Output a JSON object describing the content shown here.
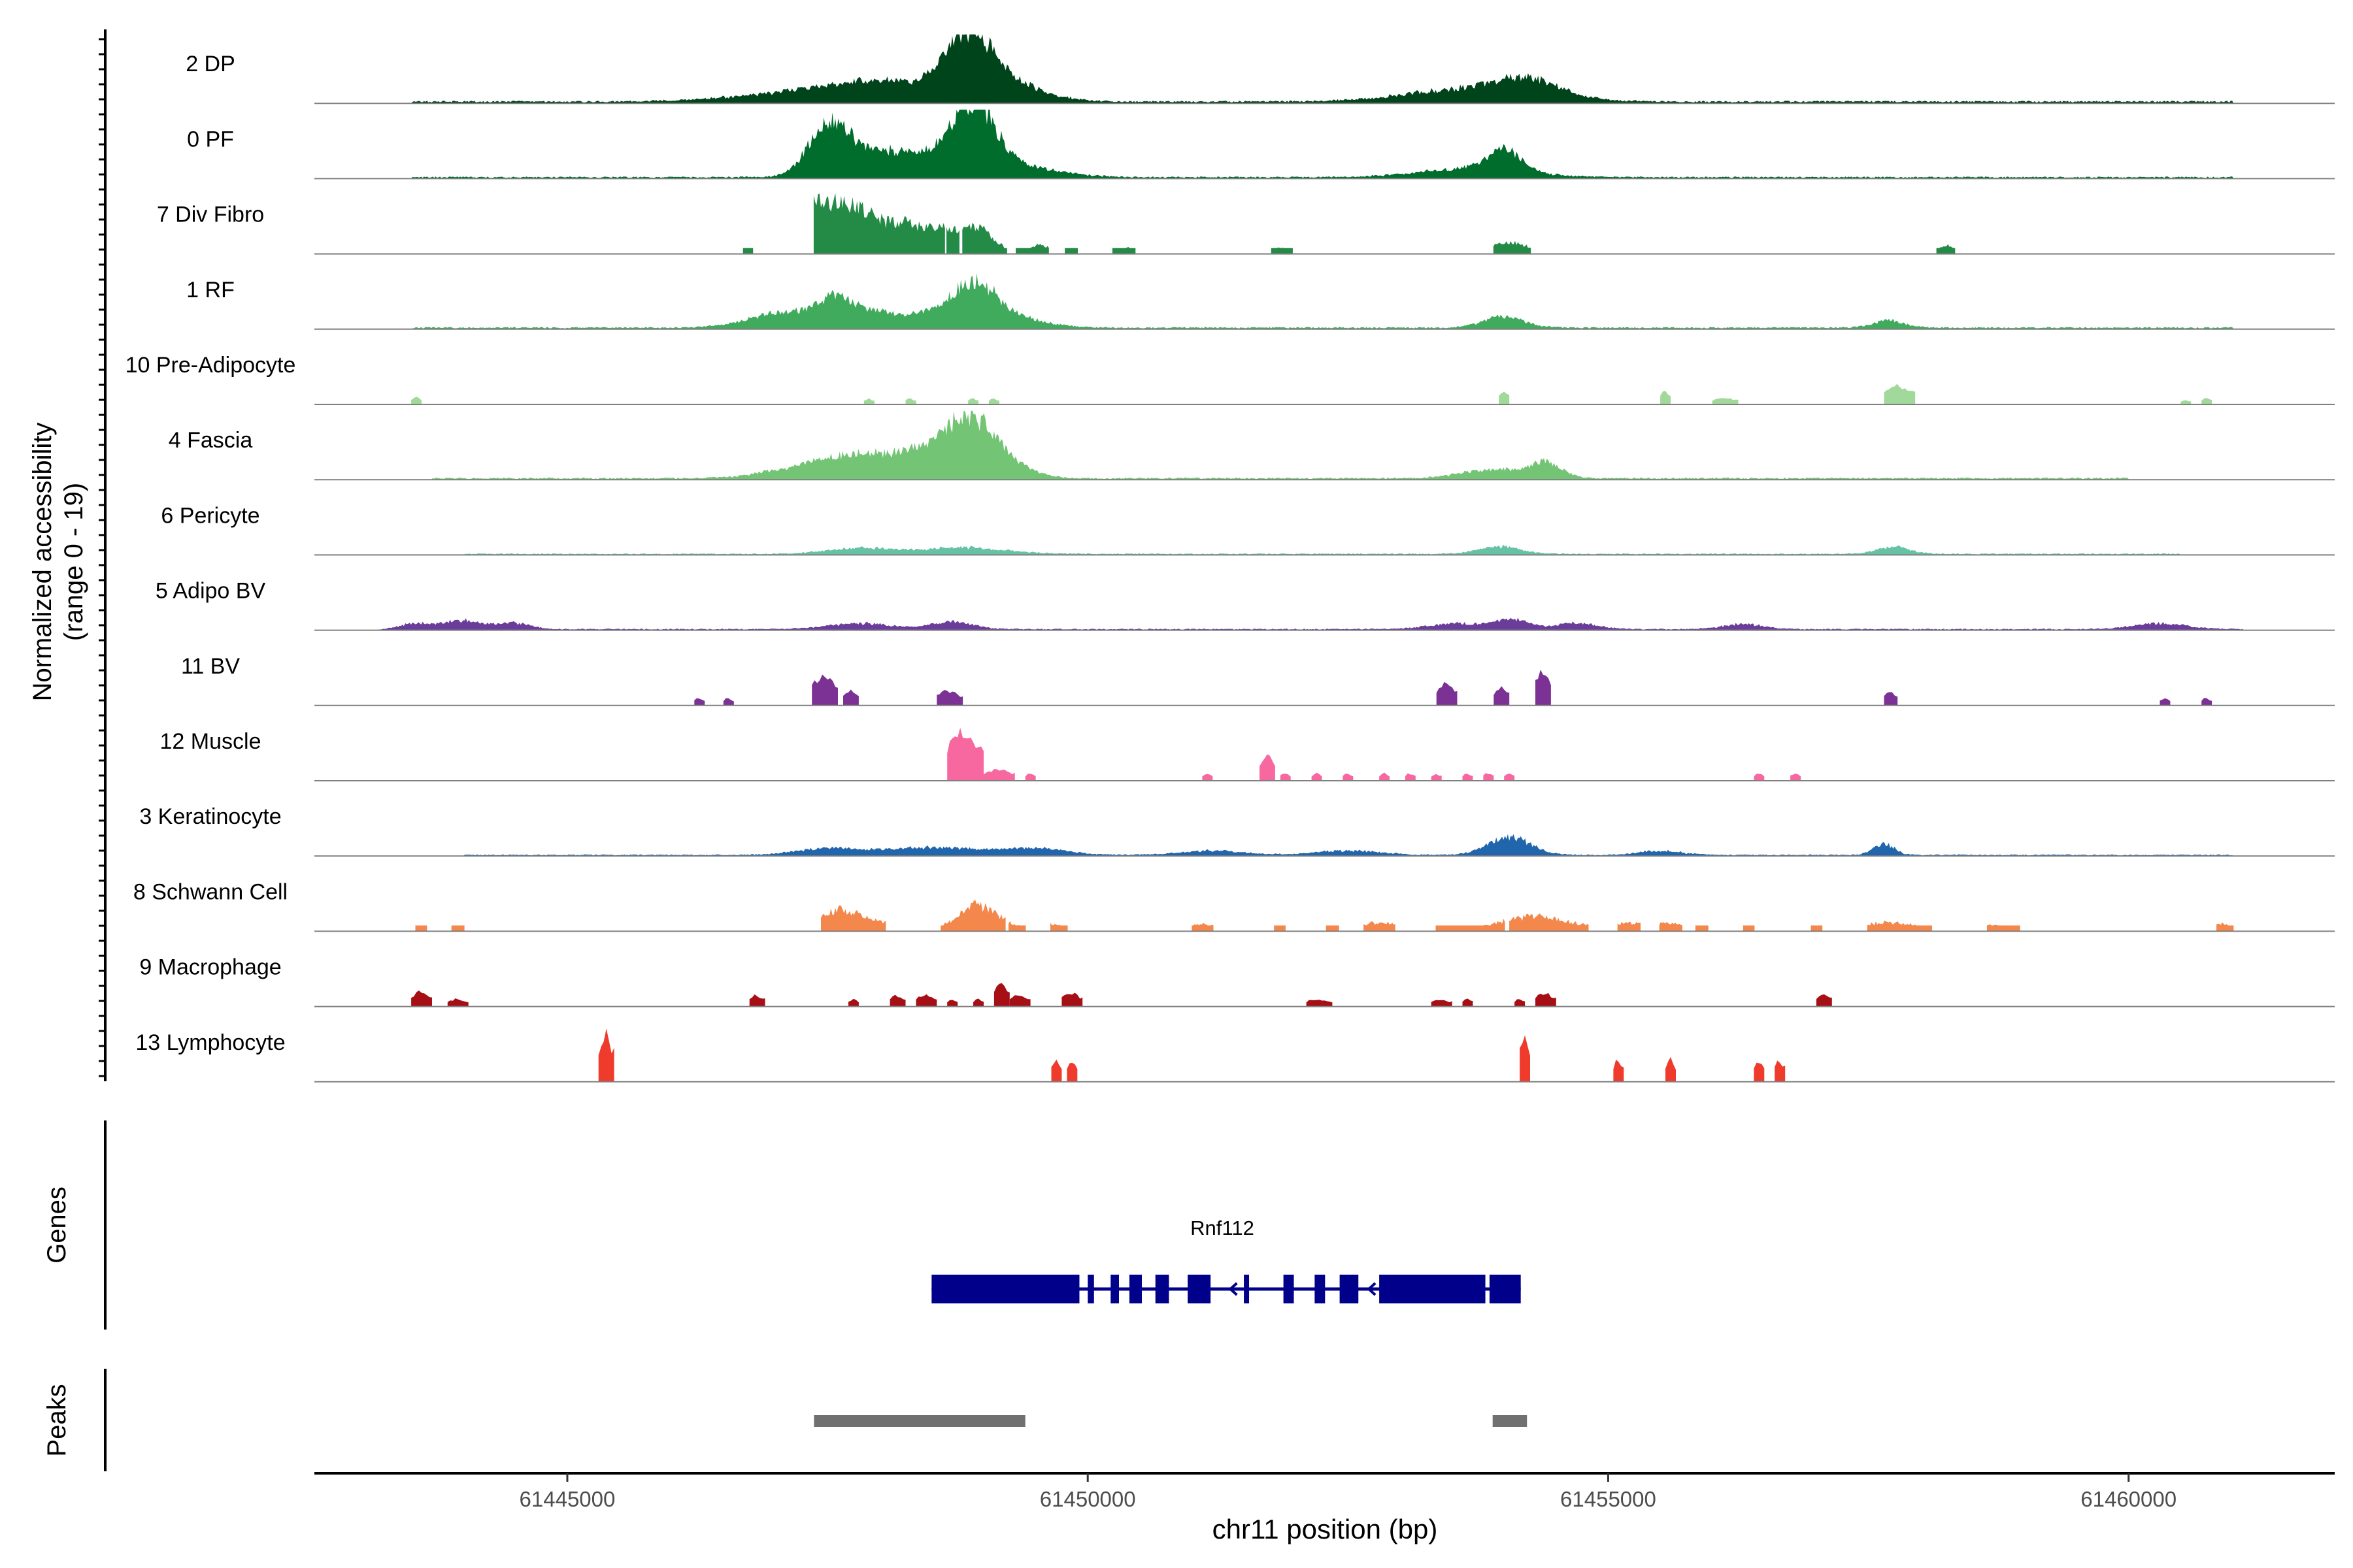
{
  "chart_data": {
    "type": "area",
    "title": "",
    "ylabel_line1": "Normalized accessibility",
    "ylabel_line2": "(range 0 - 19)",
    "genes_label": "Genes",
    "peaks_label": "Peaks",
    "xlabel": "chr11 position (bp)",
    "xlim": [
      61442570,
      61461980
    ],
    "xticks": [
      61445000,
      61450000,
      61455000,
      61460000
    ],
    "xtick_labels": [
      "61445000",
      "61450000",
      "61455000",
      "61460000"
    ],
    "ylim": [
      0,
      19
    ],
    "tracks": [
      {
        "name": "2 DP",
        "color": "#00441b",
        "peaks": [
          [
            61447400,
            1.5,
            650
          ],
          [
            61448200,
            2.0,
            500
          ],
          [
            61448850,
            7.5,
            220
          ],
          [
            61449200,
            2.5,
            350
          ],
          [
            61453700,
            1.8,
            600
          ],
          [
            61454250,
            2.0,
            300
          ]
        ],
        "noise": [
          61443500,
          61461000
        ],
        "base": 0.25
      },
      {
        "name": "0 PF",
        "color": "#006d2c",
        "peaks": [
          [
            61447500,
            6.0,
            180
          ],
          [
            61447900,
            3.0,
            350
          ],
          [
            61448500,
            2.0,
            400
          ],
          [
            61448900,
            8.5,
            200
          ],
          [
            61449300,
            1.5,
            400
          ],
          [
            61453700,
            1.2,
            500
          ],
          [
            61454000,
            3.0,
            160
          ]
        ],
        "noise": [
          61443500,
          61461000
        ],
        "base": 0.2
      },
      {
        "name": "7 Div Fibro",
        "color": "#238b45",
        "peaks": [
          [
            61447300,
            6.5,
            180
          ],
          [
            61447700,
            6.0,
            200
          ],
          [
            61448200,
            4.0,
            250
          ],
          [
            61448600,
            2.5,
            150
          ],
          [
            61448950,
            3.5,
            150
          ],
          [
            61449550,
            1.2,
            100
          ],
          [
            61450400,
            0.8,
            100
          ],
          [
            61451850,
            0.8,
            100
          ],
          [
            61454050,
            1.5,
            200
          ],
          [
            61458250,
            1.2,
            60
          ]
        ],
        "noise": [],
        "base": 0.3,
        "blocky": true,
        "segs": [
          [
            61446700,
            61446780
          ],
          [
            61447370,
            61448620
          ],
          [
            61448650,
            61448760
          ],
          [
            61448800,
            61449220
          ],
          [
            61449320,
            61449620
          ],
          [
            61449780,
            61449900
          ],
          [
            61450250,
            61450450
          ],
          [
            61451770,
            61451960
          ],
          [
            61453900,
            61454250
          ],
          [
            61458160,
            61458320
          ]
        ]
      },
      {
        "name": "1 RF",
        "color": "#41ab5d",
        "peaks": [
          [
            61447100,
            2.0,
            350
          ],
          [
            61447600,
            3.0,
            200
          ],
          [
            61448200,
            2.0,
            400
          ],
          [
            61448900,
            5.5,
            220
          ],
          [
            61449300,
            1.2,
            300
          ],
          [
            61454000,
            1.5,
            200
          ],
          [
            61457700,
            1.0,
            150
          ]
        ],
        "noise": [
          61443500,
          61461000
        ],
        "base": 0.2
      },
      {
        "name": "10 Pre-Adipocyte",
        "color": "#a1d99b",
        "peaks": [],
        "noise": [],
        "base": 0,
        "blocky": true,
        "segs": [
          [
            61443500,
            61443600,
            1.0
          ],
          [
            61447850,
            61447950,
            0.8
          ],
          [
            61448250,
            61448350,
            0.8
          ],
          [
            61448850,
            61448950,
            0.8
          ],
          [
            61449050,
            61449150,
            0.8
          ],
          [
            61453950,
            61454050,
            1.8
          ],
          [
            61455500,
            61455600,
            1.8
          ],
          [
            61456000,
            61456250,
            0.9
          ],
          [
            61457650,
            61457950,
            2.5
          ],
          [
            61460500,
            61460600,
            0.6
          ],
          [
            61460700,
            61460800,
            0.9
          ]
        ]
      },
      {
        "name": "4 Fascia",
        "color": "#74c476",
        "peaks": [
          [
            61447200,
            1.2,
            350
          ],
          [
            61447700,
            2.5,
            300
          ],
          [
            61448300,
            3.0,
            300
          ],
          [
            61448850,
            7.5,
            250
          ],
          [
            61449200,
            1.5,
            250
          ],
          [
            61453900,
            1.2,
            300
          ],
          [
            61454400,
            2.0,
            150
          ]
        ],
        "noise": [
          61443700,
          61460000
        ],
        "base": 0.2
      },
      {
        "name": "6 Pericyte",
        "color": "#66c2a4",
        "peaks": [
          [
            61447800,
            0.8,
            300
          ],
          [
            61448800,
            0.9,
            400
          ],
          [
            61453950,
            1.0,
            200
          ],
          [
            61457750,
            1.0,
            150
          ]
        ],
        "noise": [
          61444000,
          61460500
        ],
        "base": 0.15
      },
      {
        "name": "5 Adipo BV",
        "color": "#6a3d9a",
        "peaks": [
          [
            61443500,
            0.8,
            150
          ],
          [
            61444000,
            1.2,
            200
          ],
          [
            61444500,
            0.8,
            150
          ],
          [
            61447800,
            0.8,
            300
          ],
          [
            61448700,
            1.0,
            200
          ],
          [
            61453600,
            0.8,
            300
          ],
          [
            61454100,
            1.2,
            150
          ],
          [
            61454700,
            0.8,
            200
          ],
          [
            61456300,
            0.7,
            200
          ],
          [
            61460300,
            0.8,
            250
          ]
        ],
        "noise": [
          61443500,
          61461100
        ],
        "base": 0.15
      },
      {
        "name": "11 BV",
        "color": "#7b3294",
        "peaks": [],
        "noise": [],
        "base": 0,
        "blocky": true,
        "segs": [
          [
            61446220,
            61446320,
            1.0
          ],
          [
            61446500,
            61446600,
            1.0
          ],
          [
            61447350,
            61447600,
            4.0
          ],
          [
            61447650,
            61447800,
            2.0
          ],
          [
            61448550,
            61448800,
            2.0
          ],
          [
            61453350,
            61453550,
            3.0
          ],
          [
            61453900,
            61454050,
            2.5
          ],
          [
            61454300,
            61454450,
            5.0
          ],
          [
            61457650,
            61457780,
            1.8
          ],
          [
            61460300,
            61460400,
            1.0
          ],
          [
            61460700,
            61460800,
            1.0
          ]
        ]
      },
      {
        "name": "12 Muscle",
        "color": "#f768a1",
        "peaks": [],
        "noise": [],
        "base": 0,
        "blocky": true,
        "segs": [
          [
            61448650,
            61449000,
            6.5
          ],
          [
            61449000,
            61449300,
            1.5
          ],
          [
            61449400,
            61449500,
            1.0
          ],
          [
            61451100,
            61451200,
            1.0
          ],
          [
            61451650,
            61451800,
            3.5
          ],
          [
            61451850,
            61451950,
            1.0
          ],
          [
            61452150,
            61452250,
            1.0
          ],
          [
            61452450,
            61452550,
            1.0
          ],
          [
            61452800,
            61452900,
            1.0
          ],
          [
            61453050,
            61453150,
            1.0
          ],
          [
            61453300,
            61453400,
            1.0
          ],
          [
            61453600,
            61453700,
            1.0
          ],
          [
            61453800,
            61453900,
            1.0
          ],
          [
            61454000,
            61454100,
            1.0
          ],
          [
            61456400,
            61456500,
            1.0
          ],
          [
            61456750,
            61456850,
            1.0
          ]
        ]
      },
      {
        "name": "3 Keratinocyte",
        "color": "#2166ac",
        "peaks": [
          [
            61447500,
            0.8,
            300
          ],
          [
            61448500,
            1.0,
            500
          ],
          [
            61449500,
            0.8,
            300
          ],
          [
            61451200,
            0.6,
            300
          ],
          [
            61452500,
            0.6,
            300
          ],
          [
            61454050,
            2.5,
            200
          ],
          [
            61455500,
            0.6,
            200
          ],
          [
            61457650,
            1.5,
            100
          ]
        ],
        "noise": [
          61444000,
          61461000
        ],
        "base": 0.15
      },
      {
        "name": "8 Schwann Cell",
        "color": "#f4874b",
        "peaks": [
          [
            61447600,
            2.8,
            200
          ],
          [
            61448000,
            1.0,
            200
          ],
          [
            61448950,
            3.5,
            200
          ],
          [
            61449600,
            1.0,
            150
          ],
          [
            61451100,
            1.0,
            150
          ],
          [
            61452800,
            1.2,
            200
          ],
          [
            61454300,
            2.0,
            350
          ],
          [
            61455200,
            1.0,
            200
          ],
          [
            61455600,
            1.0,
            150
          ],
          [
            61457700,
            1.2,
            300
          ],
          [
            61458700,
            0.8,
            150
          ],
          [
            61460900,
            1.0,
            100
          ]
        ],
        "noise": [],
        "base": 0,
        "blocky": true,
        "segs": [
          [
            61443550,
            61443650
          ],
          [
            61443900,
            61444000
          ],
          [
            61447450,
            61448050
          ],
          [
            61448600,
            61449200
          ],
          [
            61449250,
            61449400
          ],
          [
            61449650,
            61449800
          ],
          [
            61451000,
            61451200
          ],
          [
            61451800,
            61451900
          ],
          [
            61452300,
            61452400
          ],
          [
            61452650,
            61452950
          ],
          [
            61453350,
            61454000
          ],
          [
            61454050,
            61454800
          ],
          [
            61455100,
            61455300
          ],
          [
            61455500,
            61455700
          ],
          [
            61455850,
            61455950
          ],
          [
            61456300,
            61456400
          ],
          [
            61456950,
            61457050
          ],
          [
            61457500,
            61458100
          ],
          [
            61458650,
            61458950
          ],
          [
            61460850,
            61461000
          ]
        ]
      },
      {
        "name": "9 Macrophage",
        "color": "#a50f15",
        "peaks": [],
        "noise": [],
        "base": 0,
        "blocky": true,
        "segs": [
          [
            61443500,
            61443700,
            2.0
          ],
          [
            61443850,
            61444050,
            1.0
          ],
          [
            61446750,
            61446900,
            1.5
          ],
          [
            61447700,
            61447800,
            1.0
          ],
          [
            61448100,
            61448250,
            1.5
          ],
          [
            61448350,
            61448550,
            1.5
          ],
          [
            61448650,
            61448750,
            1.0
          ],
          [
            61448900,
            61449000,
            1.0
          ],
          [
            61449100,
            61449250,
            3.5
          ],
          [
            61449250,
            61449450,
            1.5
          ],
          [
            61449750,
            61449950,
            1.8
          ],
          [
            61452100,
            61452350,
            1.0
          ],
          [
            61453300,
            61453500,
            1.0
          ],
          [
            61453600,
            61453700,
            1.0
          ],
          [
            61454100,
            61454200,
            1.0
          ],
          [
            61454300,
            61454500,
            1.8
          ],
          [
            61457000,
            61457150,
            1.8
          ]
        ]
      },
      {
        "name": "13 Lymphocyte",
        "color": "#ef3b2c",
        "peaks": [],
        "noise": [],
        "base": 0,
        "blocky": true,
        "segs": [
          [
            61445300,
            61445450,
            6.5
          ],
          [
            61449650,
            61449750,
            3.0
          ],
          [
            61449800,
            61449900,
            3.0
          ],
          [
            61454150,
            61454250,
            6.5
          ],
          [
            61455050,
            61455150,
            3.0
          ],
          [
            61455550,
            61455650,
            3.0
          ],
          [
            61456400,
            61456500,
            3.0
          ],
          [
            61456600,
            61456700,
            3.0
          ]
        ]
      }
    ],
    "gene": {
      "name": "Rnf112",
      "strand": "-",
      "start": 61448500,
      "end": 61454160,
      "color": "#00008b",
      "exons": [
        [
          61448500,
          61449920
        ],
        [
          61450000,
          61450060
        ],
        [
          61450220,
          61450300
        ],
        [
          61450400,
          61450520
        ],
        [
          61450650,
          61450780
        ],
        [
          61450960,
          61451180
        ],
        [
          61451500,
          61451550
        ],
        [
          61451880,
          61451980
        ],
        [
          61452180,
          61452280
        ],
        [
          61452420,
          61452600
        ],
        [
          61452800,
          61453820
        ],
        [
          61453860,
          61454160
        ]
      ]
    },
    "peaks": {
      "color": "#707070",
      "regions": [
        [
          61447370,
          61449400
        ],
        [
          61453890,
          61454220
        ]
      ]
    }
  }
}
